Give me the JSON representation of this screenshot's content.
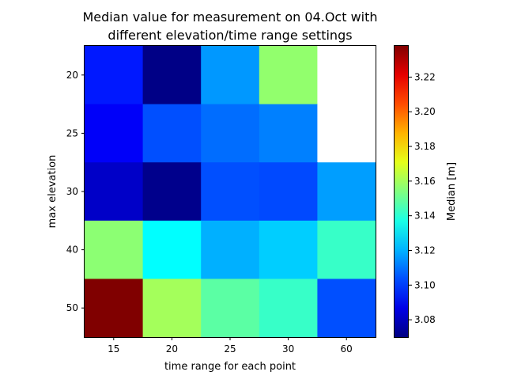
{
  "chart_data": {
    "type": "heatmap",
    "title_lines": [
      "Median value for measurement on 04.Oct with",
      "different elevation/time range settings"
    ],
    "xlabel": "time range for each point",
    "ylabel": "max elevation",
    "x_categories": [
      "15",
      "20",
      "25",
      "30",
      "60"
    ],
    "y_categories": [
      "20",
      "25",
      "30",
      "40",
      "50"
    ],
    "values": [
      [
        3.095,
        3.071,
        3.116,
        3.157,
        null
      ],
      [
        3.09,
        3.104,
        3.109,
        3.112,
        null
      ],
      [
        3.082,
        3.072,
        3.104,
        3.103,
        3.117
      ],
      [
        3.156,
        3.133,
        3.12,
        3.125,
        3.142
      ],
      [
        3.238,
        3.16,
        3.148,
        3.142,
        3.104
      ]
    ],
    "colormap": "jet",
    "color_range": [
      3.07,
      3.238
    ],
    "colorbar": {
      "label": "Median [m]",
      "ticks": [
        "3.08",
        "3.10",
        "3.12",
        "3.14",
        "3.16",
        "3.18",
        "3.20",
        "3.22"
      ]
    },
    "missing_color": "#ffffff",
    "grid": false
  }
}
